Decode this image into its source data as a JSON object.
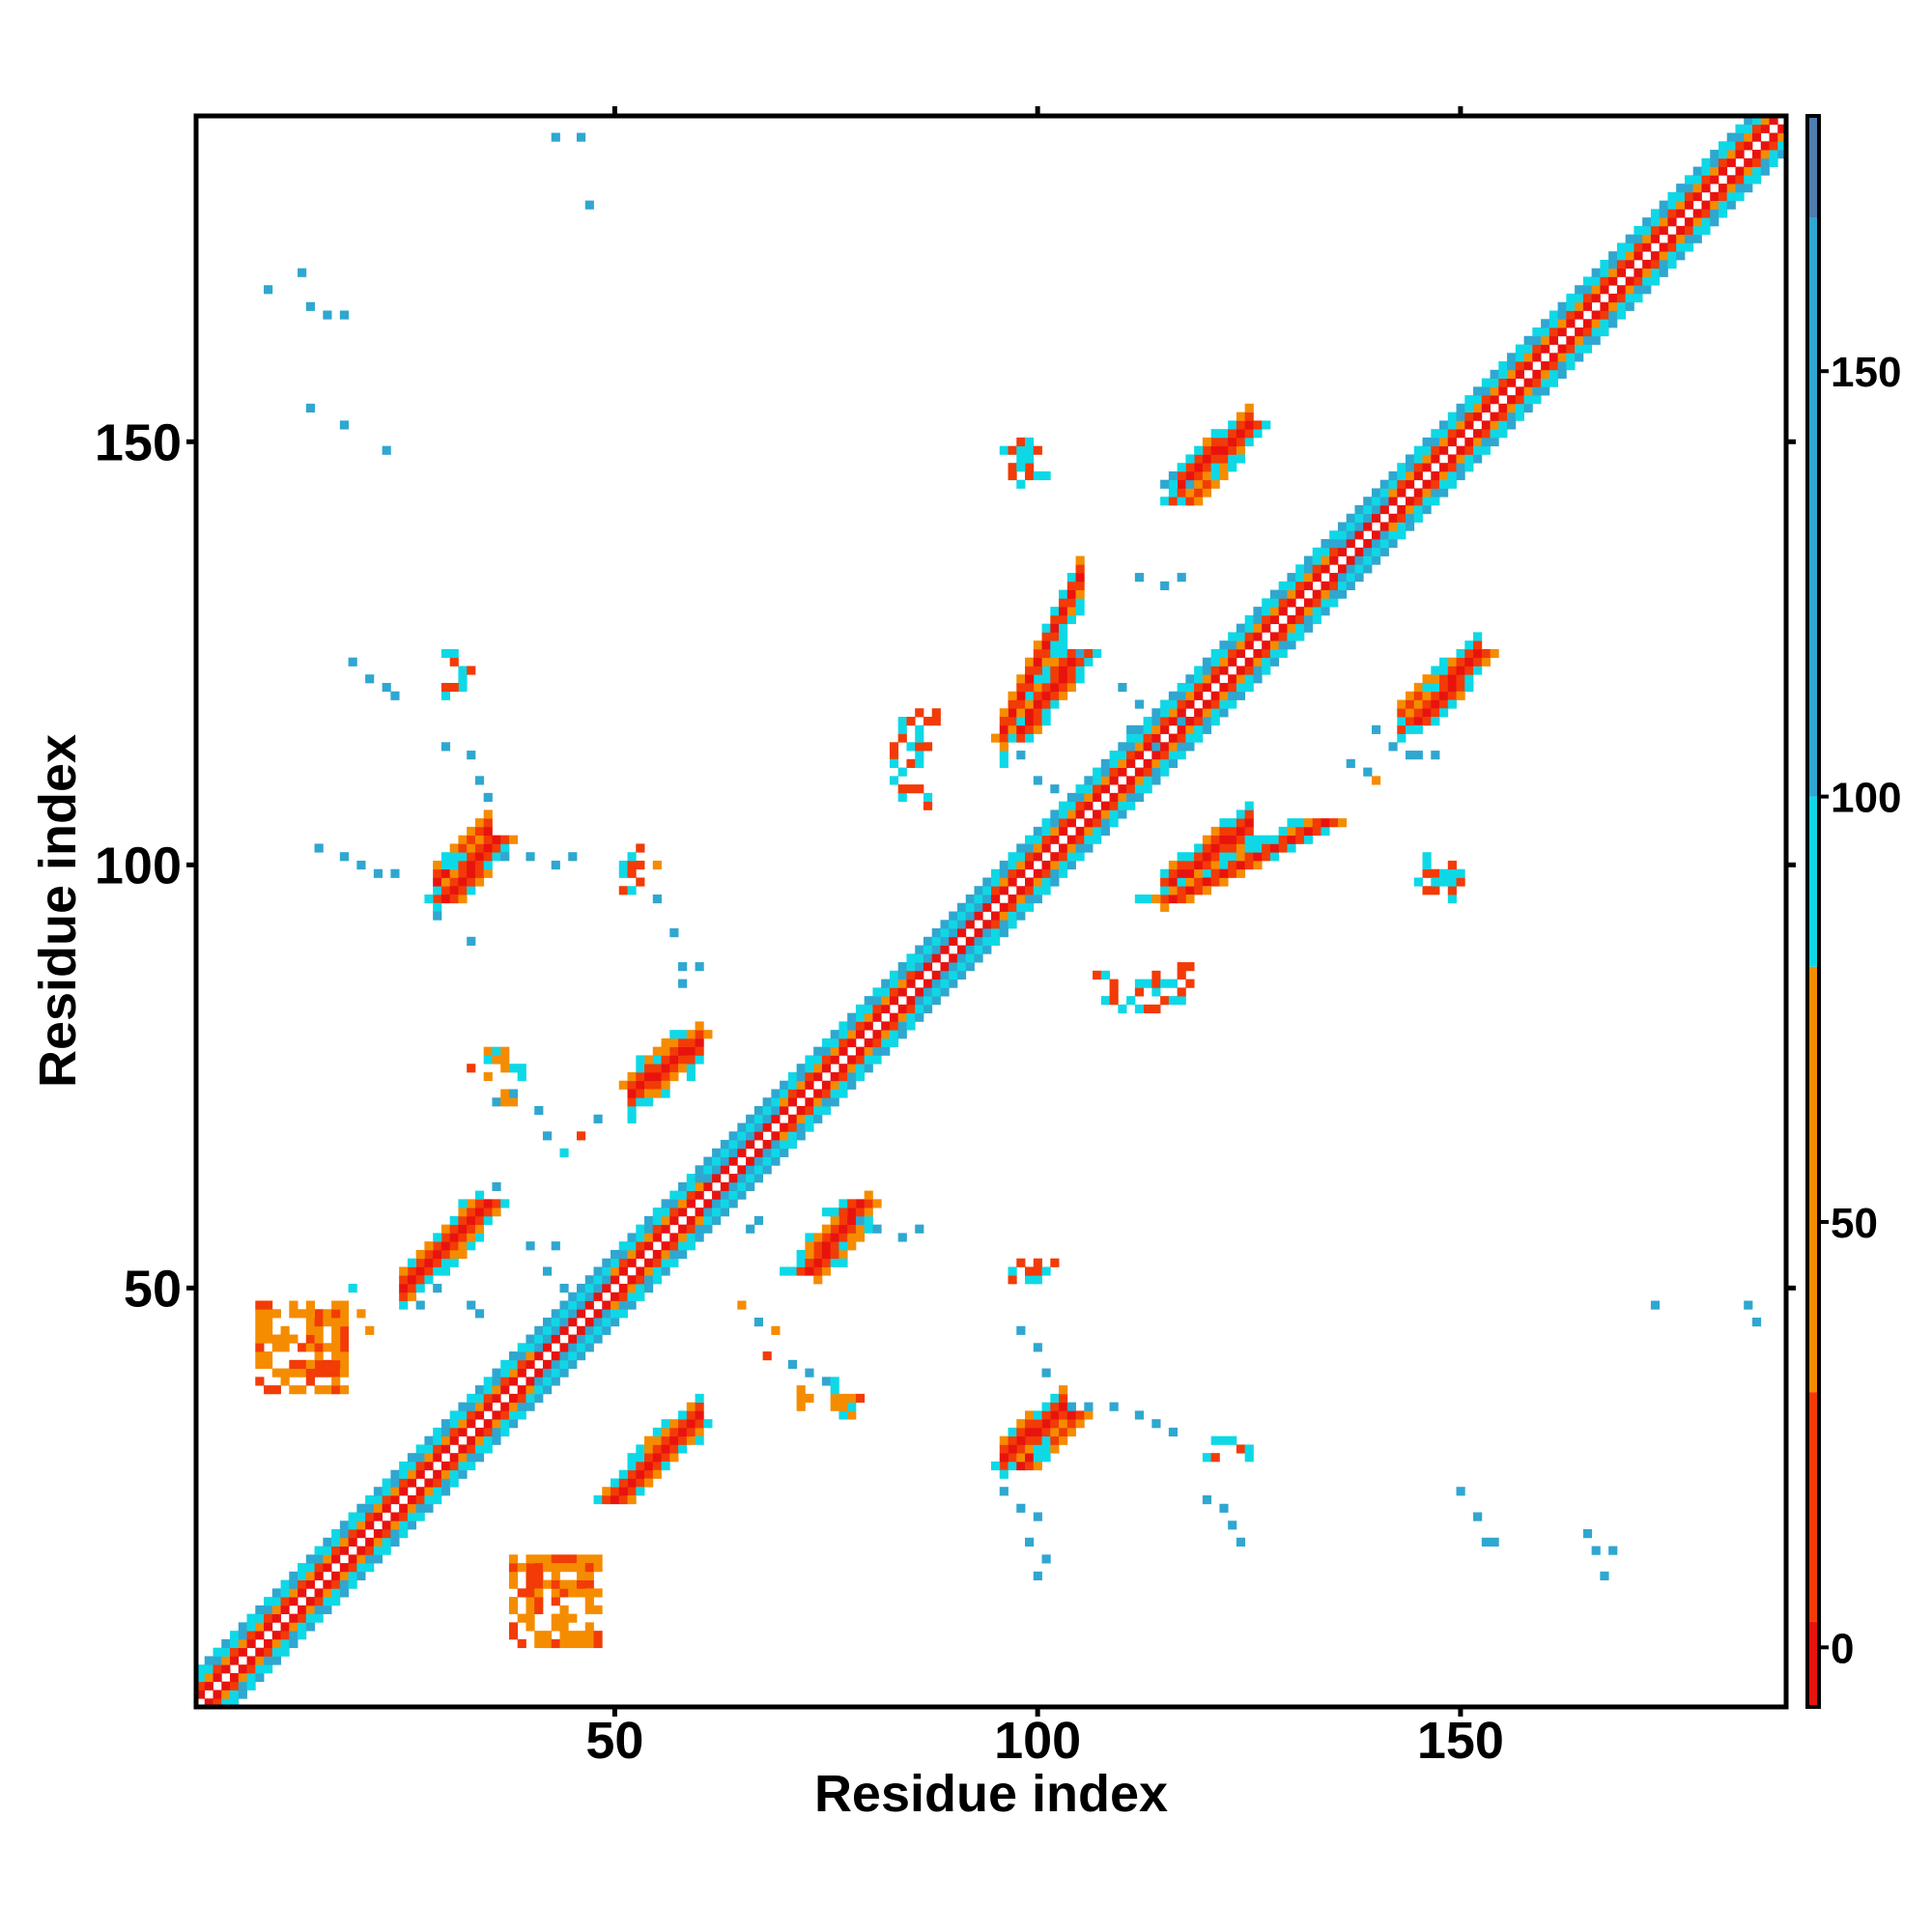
{
  "chart_data": {
    "type": "heatmap",
    "title": "",
    "xlabel": "Residue index",
    "ylabel": "Residue index",
    "xlim": [
      1,
      188
    ],
    "ylim": [
      1,
      188
    ],
    "x_ticks": [
      50,
      100,
      150
    ],
    "y_ticks": [
      50,
      100,
      150
    ],
    "colorbar": {
      "ticks": [
        0,
        50,
        100,
        150
      ],
      "range": [
        -7,
        180
      ],
      "bands": [
        {
          "from": -7,
          "to": 3,
          "color": "#e8130f"
        },
        {
          "from": 3,
          "to": 30,
          "color": "#f23b06"
        },
        {
          "from": 30,
          "to": 80,
          "color": "#f58c00"
        },
        {
          "from": 80,
          "to": 100,
          "color": "#0fd8e6"
        },
        {
          "from": 100,
          "to": 168,
          "color": "#2fa7d0"
        },
        {
          "from": 168,
          "to": 180,
          "color": "#4f7db0"
        }
      ]
    },
    "diagonal_band": {
      "halfwidth": 4,
      "symmetric": true
    },
    "contacts": [
      {
        "x": [
          28,
          35
        ],
        "y": [
          52,
          60
        ],
        "kind": "antiparallel-strip",
        "value": 10
      },
      {
        "x": [
          2,
          13
        ],
        "y": [
          2,
          13
        ],
        "kind": "diagonal-cluster",
        "value": 40
      },
      {
        "x": [
          9,
          18
        ],
        "y": [
          40,
          48
        ],
        "kind": "grid-cluster",
        "value": 40
      },
      {
        "x": [
          38,
          48
        ],
        "y": [
          8,
          18
        ],
        "kind": "grid-cluster",
        "value": 40
      },
      {
        "x": [
          50,
          59
        ],
        "y": [
          25,
          34
        ],
        "kind": "parallel-strip",
        "value": 5
      },
      {
        "x": [
          53,
          59
        ],
        "y": [
          74,
          80
        ],
        "kind": "parallel-strip",
        "value": 5
      },
      {
        "x": [
          73,
          79
        ],
        "y": [
          52,
          60
        ],
        "kind": "parallel-strip",
        "value": 5
      },
      {
        "x": [
          98,
          104
        ],
        "y": [
          29,
          35
        ],
        "kind": "parallel-strip",
        "value": 5
      },
      {
        "x": [
          30,
          36
        ],
        "y": [
          96,
          103
        ],
        "kind": "parallel-strip",
        "value": 5
      },
      {
        "x": [
          97,
          105
        ],
        "y": [
          115,
          125
        ],
        "kind": "parallel-strip",
        "value": 5
      },
      {
        "x": [
          117,
          125
        ],
        "y": [
          143,
          152
        ],
        "kind": "parallel-strip",
        "value": 5
      },
      {
        "x": [
          145,
          152
        ],
        "y": [
          117,
          125
        ],
        "kind": "parallel-strip",
        "value": 5
      },
      {
        "x": [
          115,
          134
        ],
        "y": [
          96,
          105
        ],
        "kind": "parallel-strip",
        "value": 5
      },
      {
        "x": [
          112,
          118
        ],
        "y": [
          83,
          88
        ],
        "kind": "scatter",
        "value": 20
      },
      {
        "x": [
          83,
          87
        ],
        "y": [
          107,
          113
        ],
        "kind": "scatter",
        "value": 20
      },
      {
        "x": [
          96,
          100
        ],
        "y": [
          146,
          150
        ],
        "kind": "scatter",
        "value": 10
      },
      {
        "x": [
          145,
          150
        ],
        "y": [
          97,
          101
        ],
        "kind": "scatter",
        "value": 10
      },
      {
        "x": [
          97,
          103
        ],
        "y": [
          51,
          53
        ],
        "kind": "scatter",
        "value": 20
      },
      {
        "x": [
          120,
          125
        ],
        "y": [
          30,
          32
        ],
        "kind": "scatter",
        "value": 20
      },
      {
        "x": [
          35,
          39
        ],
        "y": [
          72,
          78
        ],
        "kind": "scatter",
        "value": 30
      }
    ],
    "sparse_points": [
      [
        43,
        186,
        120
      ],
      [
        46,
        186,
        160
      ],
      [
        47,
        178,
        160
      ],
      [
        9,
        168,
        160
      ],
      [
        13,
        170,
        130
      ],
      [
        14,
        166,
        130
      ],
      [
        16,
        165,
        130
      ],
      [
        18,
        165,
        130
      ],
      [
        14,
        154,
        160
      ],
      [
        18,
        152,
        160
      ],
      [
        23,
        149,
        130
      ],
      [
        19,
        124,
        130
      ],
      [
        21,
        122,
        130
      ],
      [
        23,
        121,
        110
      ],
      [
        24,
        120,
        130
      ],
      [
        31,
        121,
        20
      ],
      [
        33,
        123,
        10
      ],
      [
        30,
        114,
        130
      ],
      [
        33,
        113,
        130
      ],
      [
        34,
        110,
        130
      ],
      [
        35,
        108,
        130
      ],
      [
        15,
        102,
        160
      ],
      [
        18,
        101,
        130
      ],
      [
        20,
        100,
        130
      ],
      [
        22,
        99,
        130
      ],
      [
        24,
        99,
        130
      ],
      [
        37,
        101,
        130
      ],
      [
        40,
        101,
        110
      ],
      [
        43,
        100,
        130
      ],
      [
        45,
        101,
        130
      ],
      [
        29,
        94,
        130
      ],
      [
        33,
        91,
        130
      ],
      [
        55,
        100,
        30
      ],
      [
        55,
        96,
        110
      ],
      [
        57,
        92,
        130
      ],
      [
        58,
        88,
        110
      ],
      [
        58,
        86,
        160
      ],
      [
        60,
        88,
        130
      ],
      [
        33,
        76,
        20
      ],
      [
        35,
        75,
        30
      ],
      [
        36,
        72,
        110
      ],
      [
        38,
        73,
        110
      ],
      [
        41,
        71,
        110
      ],
      [
        42,
        68,
        130
      ],
      [
        46,
        68,
        20
      ],
      [
        48,
        70,
        110
      ],
      [
        44,
        66,
        90
      ],
      [
        36,
        62,
        110
      ],
      [
        40,
        55,
        110
      ],
      [
        43,
        55,
        130
      ],
      [
        42,
        52,
        130
      ],
      [
        44,
        50,
        130
      ],
      [
        27,
        48,
        130
      ],
      [
        29,
        50,
        130
      ],
      [
        33,
        48,
        110
      ],
      [
        34,
        47,
        110
      ],
      [
        20,
        47,
        30
      ],
      [
        21,
        45,
        30
      ],
      [
        19,
        50,
        90
      ],
      [
        63,
        60,
        90
      ],
      [
        66,
        57,
        130
      ],
      [
        67,
        58,
        110
      ],
      [
        79,
        58,
        110
      ],
      [
        81,
        57,
        110
      ],
      [
        84,
        56,
        130
      ],
      [
        86,
        57,
        130
      ],
      [
        65,
        48,
        30
      ],
      [
        67,
        46,
        110
      ],
      [
        68,
        42,
        20
      ],
      [
        69,
        45,
        30
      ],
      [
        71,
        41,
        110
      ],
      [
        73,
        40,
        110
      ],
      [
        75,
        39,
        130
      ],
      [
        76,
        36,
        30
      ],
      [
        79,
        37,
        20
      ],
      [
        98,
        45,
        110
      ],
      [
        100,
        43,
        130
      ],
      [
        101,
        40,
        130
      ],
      [
        104,
        36,
        110
      ],
      [
        106,
        36,
        110
      ],
      [
        109,
        36,
        130
      ],
      [
        112,
        35,
        130
      ],
      [
        114,
        34,
        110
      ],
      [
        116,
        33,
        160
      ],
      [
        96,
        26,
        110
      ],
      [
        98,
        24,
        110
      ],
      [
        100,
        23,
        130
      ],
      [
        99,
        20,
        110
      ],
      [
        101,
        18,
        130
      ],
      [
        100,
        16,
        160
      ],
      [
        120,
        25,
        130
      ],
      [
        122,
        24,
        160
      ],
      [
        123,
        22,
        130
      ],
      [
        124,
        20,
        110
      ],
      [
        150,
        26,
        110
      ],
      [
        152,
        23,
        130
      ],
      [
        153,
        20,
        160
      ],
      [
        154,
        20,
        160
      ],
      [
        165,
        21,
        130
      ],
      [
        166,
        19,
        110
      ],
      [
        168,
        19,
        130
      ],
      [
        167,
        16,
        130
      ],
      [
        173,
        48,
        160
      ],
      [
        184,
        48,
        130
      ],
      [
        185,
        46,
        110
      ],
      [
        105,
        125,
        110
      ],
      [
        110,
        121,
        130
      ],
      [
        112,
        119,
        130
      ],
      [
        114,
        118,
        130
      ],
      [
        117,
        117,
        110
      ],
      [
        111,
        116,
        130
      ],
      [
        114,
        114,
        110
      ],
      [
        116,
        112,
        130
      ],
      [
        98,
        113,
        110
      ],
      [
        100,
        110,
        130
      ],
      [
        102,
        109,
        110
      ],
      [
        140,
        116,
        110
      ],
      [
        142,
        114,
        110
      ],
      [
        144,
        113,
        110
      ],
      [
        145,
        113,
        160
      ],
      [
        147,
        113,
        130
      ],
      [
        137,
        112,
        110
      ],
      [
        139,
        111,
        110
      ],
      [
        140,
        110,
        30
      ],
      [
        112,
        134,
        110
      ],
      [
        115,
        133,
        130
      ],
      [
        117,
        134,
        130
      ],
      [
        115,
        145,
        160
      ],
      [
        116,
        146,
        130
      ],
      [
        118,
        145,
        130
      ]
    ]
  }
}
